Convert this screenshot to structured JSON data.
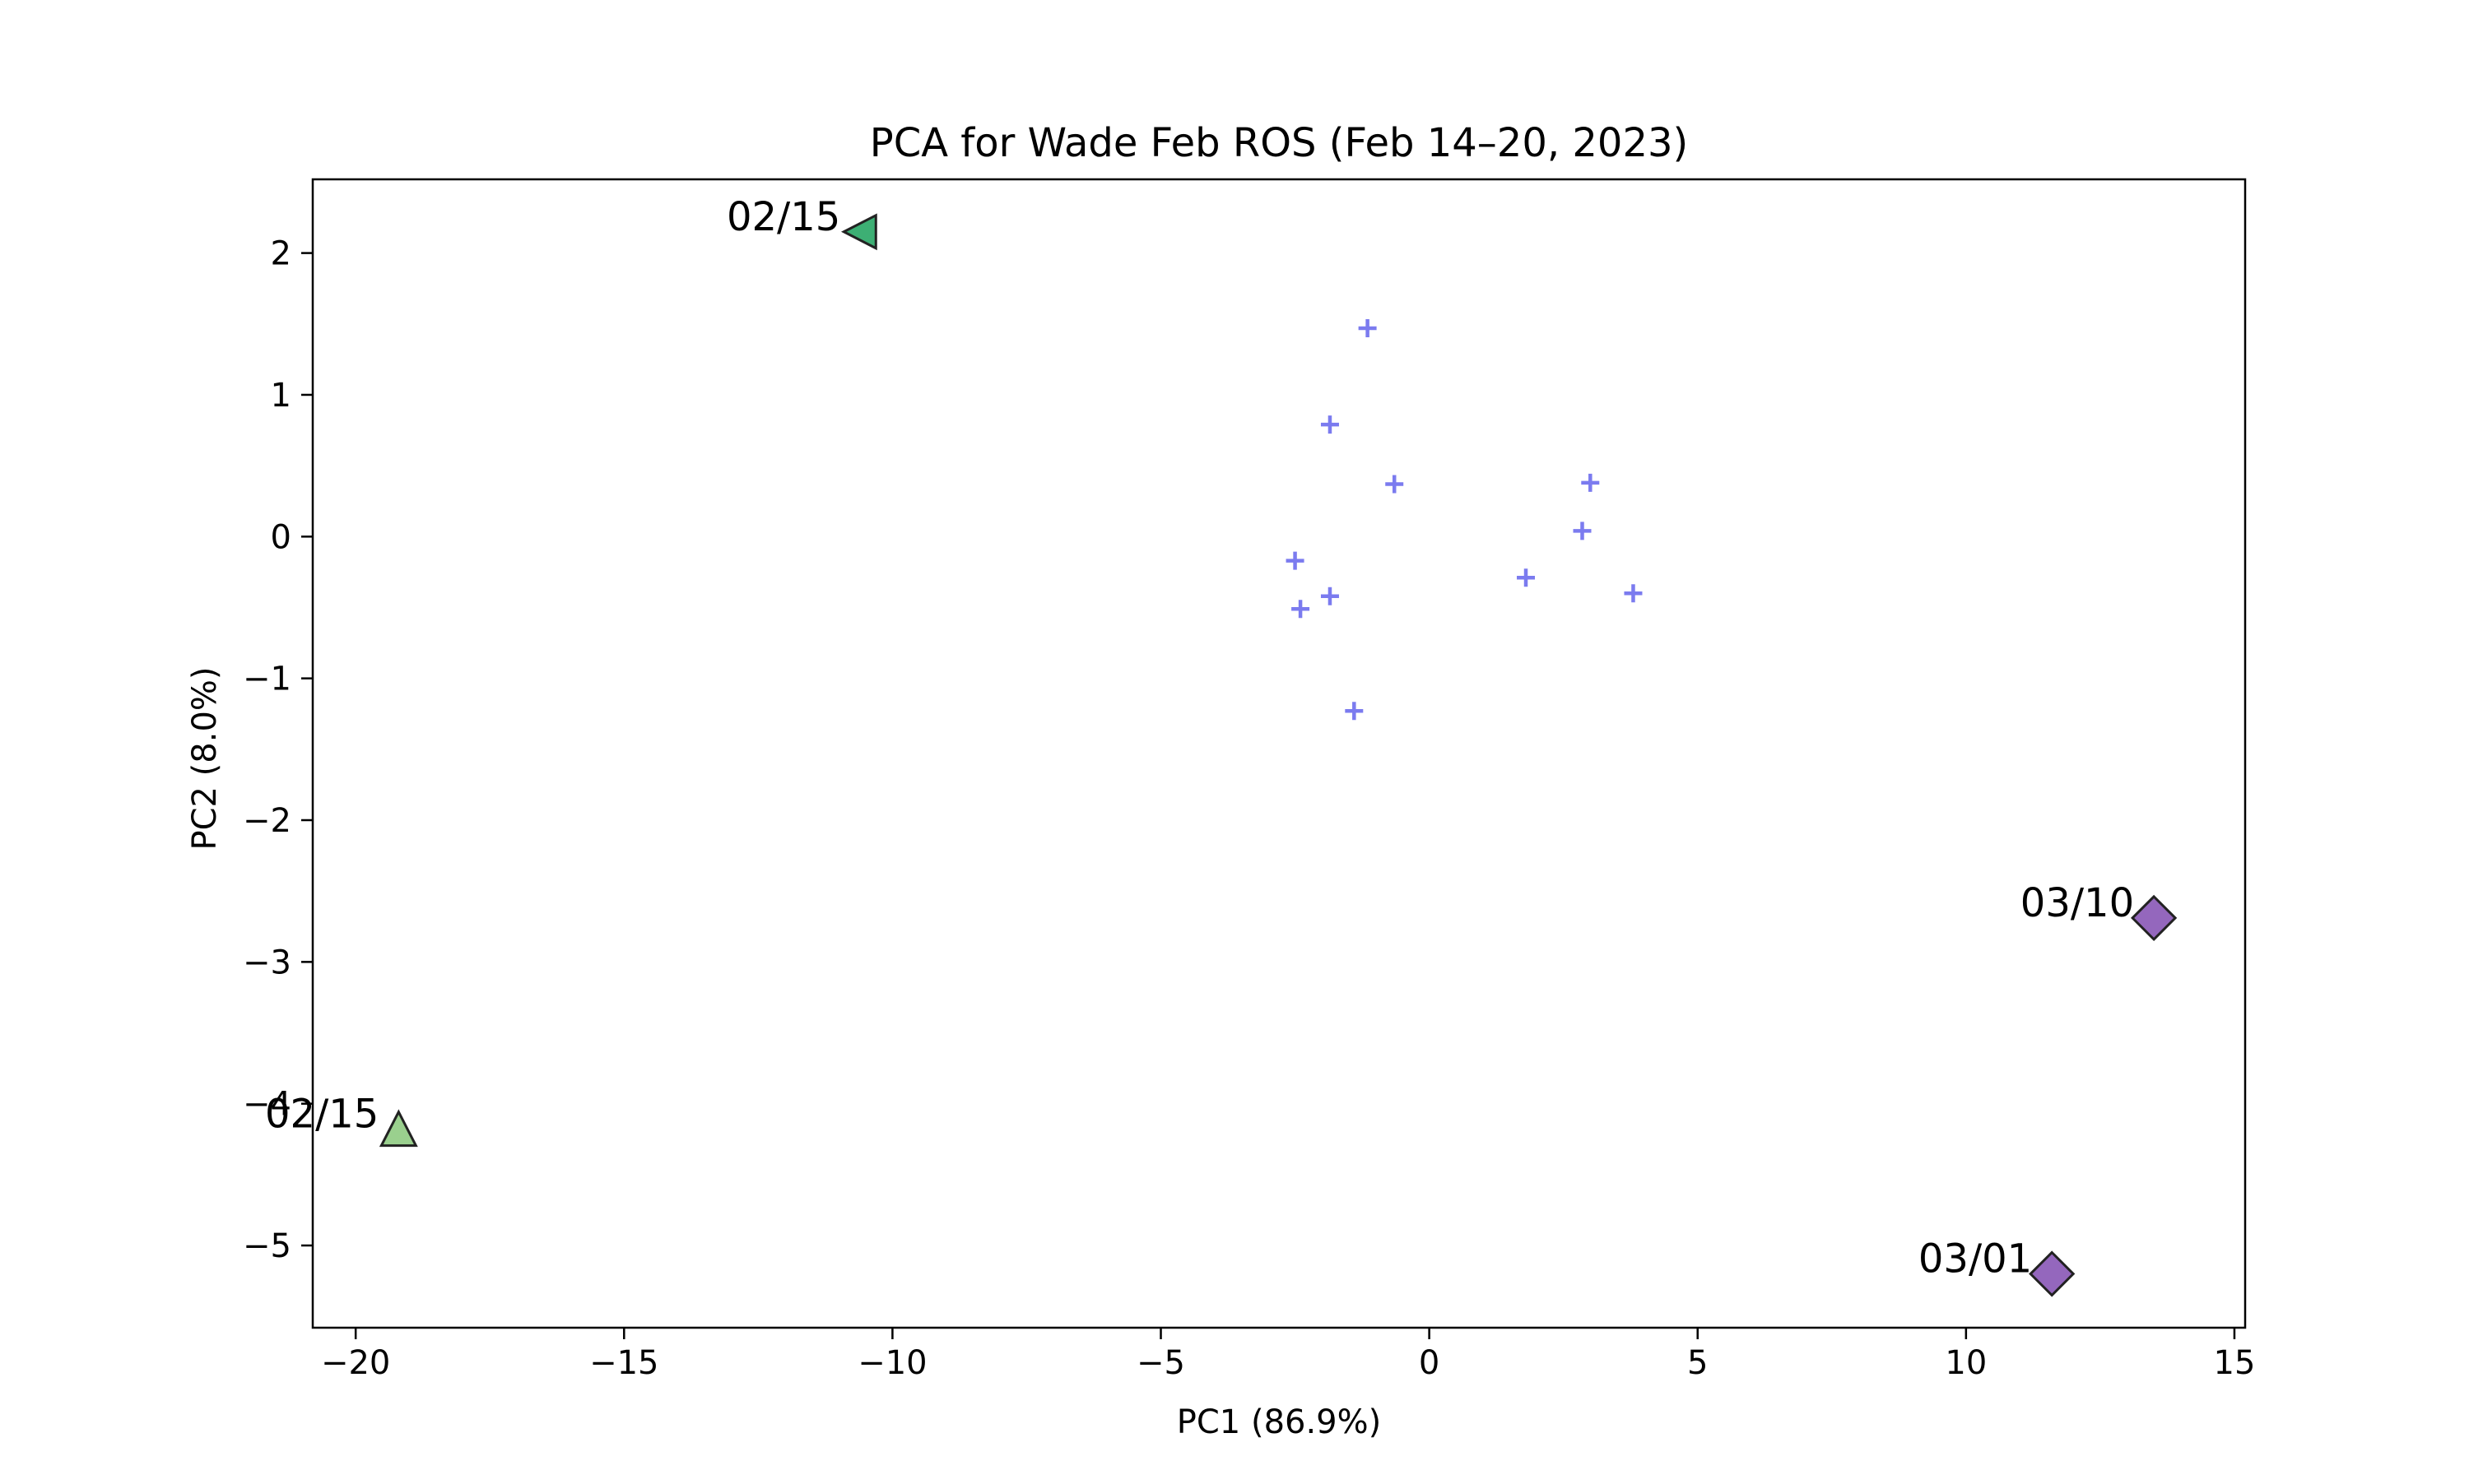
{
  "chart_data": {
    "type": "scatter",
    "title": "PCA for Wade Feb ROS (Feb 14–20, 2023)",
    "xlabel": "PC1 (86.9%)",
    "ylabel": "PC2 (8.0%)",
    "xlim": [
      -20.8,
      15.2
    ],
    "ylim": [
      -5.58,
      2.52
    ],
    "xticks": [
      -20,
      -15,
      -10,
      -5,
      0,
      5,
      10,
      15
    ],
    "yticks": [
      -5,
      -4,
      -3,
      -2,
      -1,
      0,
      1,
      2
    ],
    "grid": false,
    "legend": "none",
    "series": [
      {
        "marker": "plus",
        "color": "#7b7bef",
        "points": [
          {
            "x": -1.15,
            "y": 1.47
          },
          {
            "x": -1.85,
            "y": 0.79
          },
          {
            "x": -0.65,
            "y": 0.37
          },
          {
            "x": 3.0,
            "y": 0.38
          },
          {
            "x": 2.85,
            "y": 0.04
          },
          {
            "x": -2.5,
            "y": -0.17
          },
          {
            "x": 1.8,
            "y": -0.29
          },
          {
            "x": -1.85,
            "y": -0.42
          },
          {
            "x": 3.8,
            "y": -0.4
          },
          {
            "x": -2.4,
            "y": -0.51
          },
          {
            "x": -1.4,
            "y": -1.23
          }
        ]
      },
      {
        "marker": "triangle-left",
        "color": "#3daf74",
        "points": [
          {
            "x": -10.6,
            "y": 2.15,
            "label": "02/15"
          }
        ]
      },
      {
        "marker": "triangle-up",
        "color": "#9ad08e",
        "points": [
          {
            "x": -19.2,
            "y": -4.18,
            "label": "02/15"
          }
        ]
      },
      {
        "marker": "diamond",
        "color": "#9467bd",
        "points": [
          {
            "x": 13.5,
            "y": -2.69,
            "label": "03/10"
          },
          {
            "x": 11.6,
            "y": -5.2,
            "label": "03/01"
          }
        ]
      }
    ]
  }
}
